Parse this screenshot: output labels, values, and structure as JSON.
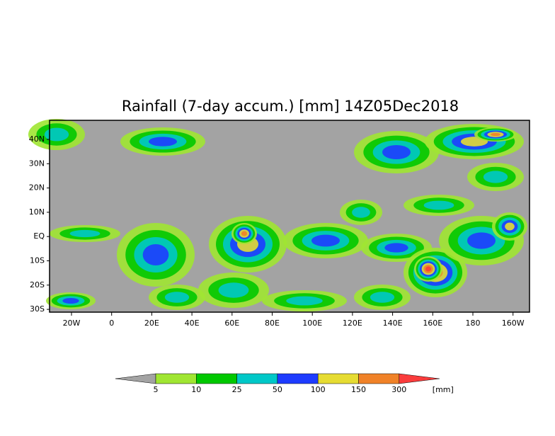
{
  "title": "Rainfall (7-day accum.) [mm] 14Z05Dec2018",
  "map": {
    "lat_ticks": [
      "40N",
      "30N",
      "20N",
      "10N",
      "EQ",
      "10S",
      "20S",
      "30S"
    ],
    "lon_ticks": [
      "20W",
      "0",
      "20E",
      "40E",
      "60E",
      "80E",
      "100E",
      "120E",
      "140E",
      "160E",
      "180",
      "160W"
    ],
    "background": "#a3a3a3"
  },
  "colorbar": {
    "colors": [
      "#a3a3a3",
      "#a0e632",
      "#00c800",
      "#00c8c8",
      "#1e3cff",
      "#e6dc32",
      "#f08228",
      "#fa3c3c"
    ],
    "levels": [
      5,
      10,
      25,
      50,
      100,
      150,
      300
    ],
    "unit": "[mm]"
  }
}
